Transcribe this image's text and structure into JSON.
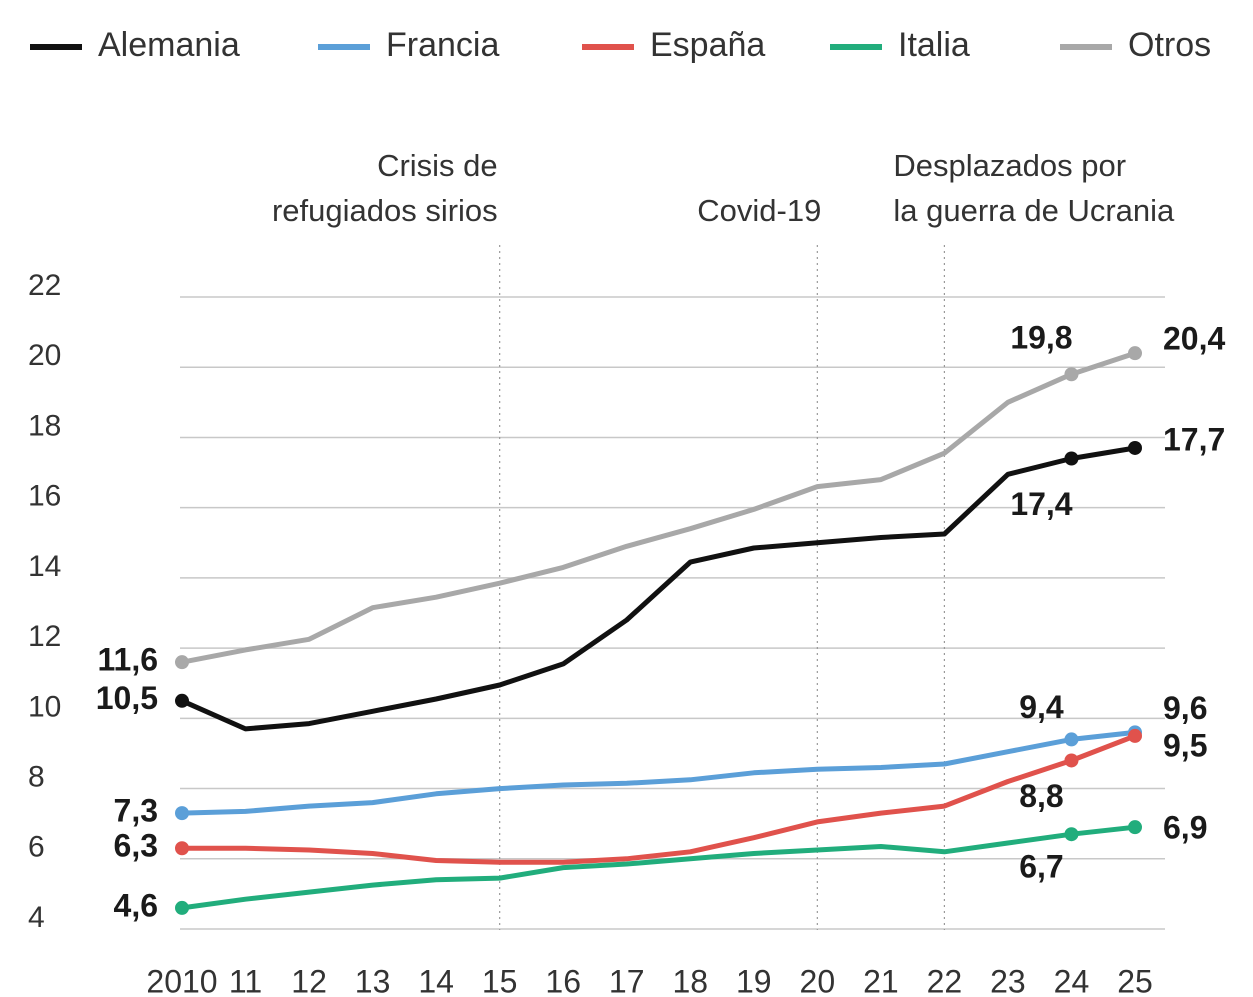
{
  "chart_data": {
    "type": "line",
    "categories": [
      "2010",
      "11",
      "12",
      "13",
      "14",
      "15",
      "16",
      "17",
      "18",
      "19",
      "20",
      "21",
      "22",
      "23",
      "24",
      "25"
    ],
    "series": [
      {
        "name": "Alemania",
        "color": "#111111",
        "values": [
          10.5,
          9.7,
          9.85,
          10.2,
          10.55,
          10.95,
          11.55,
          12.8,
          14.45,
          14.85,
          15.0,
          15.15,
          15.25,
          16.95,
          17.4,
          17.7
        ],
        "value_labels": [
          "10,5",
          null,
          null,
          null,
          null,
          null,
          null,
          null,
          null,
          null,
          null,
          null,
          null,
          null,
          "17,4",
          "17,7"
        ]
      },
      {
        "name": "Francia",
        "color": "#5b9fd8",
        "values": [
          7.3,
          7.35,
          7.5,
          7.6,
          7.85,
          8.0,
          8.1,
          8.15,
          8.25,
          8.45,
          8.55,
          8.6,
          8.7,
          9.05,
          9.4,
          9.6
        ],
        "value_labels": [
          "7,3",
          null,
          null,
          null,
          null,
          null,
          null,
          null,
          null,
          null,
          null,
          null,
          null,
          null,
          "9,4",
          "9,6"
        ]
      },
      {
        "name": "España",
        "color": "#e0524c",
        "values": [
          6.3,
          6.3,
          6.25,
          6.15,
          5.95,
          5.9,
          5.9,
          6.0,
          6.2,
          6.6,
          7.05,
          7.3,
          7.5,
          8.2,
          8.8,
          9.5
        ],
        "value_labels": [
          "6,3",
          null,
          null,
          null,
          null,
          null,
          null,
          null,
          null,
          null,
          null,
          null,
          null,
          null,
          "8,8",
          "9,5"
        ]
      },
      {
        "name": "Italia",
        "color": "#21ad7c",
        "values": [
          4.6,
          4.85,
          5.05,
          5.25,
          5.4,
          5.45,
          5.75,
          5.85,
          6.0,
          6.15,
          6.25,
          6.35,
          6.2,
          6.45,
          6.7,
          6.9
        ],
        "value_labels": [
          "4,6",
          null,
          null,
          null,
          null,
          null,
          null,
          null,
          null,
          null,
          null,
          null,
          null,
          null,
          "6,7",
          "6,9"
        ]
      },
      {
        "name": "Otros",
        "color": "#a8a8a8",
        "values": [
          11.6,
          11.95,
          12.25,
          13.15,
          13.45,
          13.85,
          14.3,
          14.9,
          15.4,
          15.95,
          16.6,
          16.8,
          17.55,
          19.0,
          19.8,
          20.4
        ],
        "value_labels": [
          "11,6",
          null,
          null,
          null,
          null,
          null,
          null,
          null,
          null,
          null,
          null,
          null,
          null,
          null,
          "19,8",
          "20,4"
        ]
      }
    ],
    "annotations": [
      {
        "category": "15",
        "lines": [
          "Crisis de",
          "refugiados sirios"
        ]
      },
      {
        "category": "20",
        "lines": [
          "Covid-19"
        ]
      },
      {
        "category": "22",
        "lines": [
          "Desplazados por",
          "la guerra de Ucrania"
        ]
      }
    ],
    "ylim": [
      4,
      22
    ],
    "yticks": [
      4,
      6,
      8,
      10,
      12,
      14,
      16,
      18,
      20,
      22
    ],
    "grid": true
  }
}
